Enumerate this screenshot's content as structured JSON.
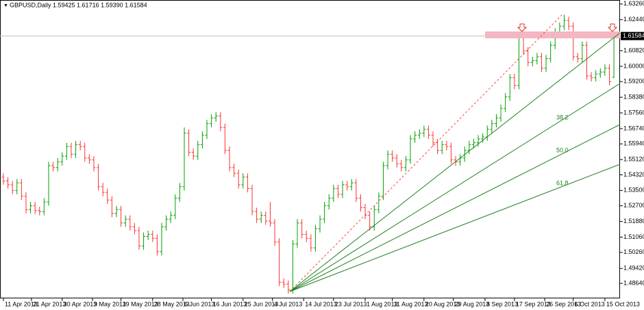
{
  "chart_data": {
    "type": "ohlc",
    "title": "GBPUSD,Daily  1.59425 1.61716 1.59390 1.61584",
    "up_color": "#00a000",
    "down_color": "#ff3030",
    "xlim": [
      -0.75,
      136.35
    ],
    "xticks": [
      {
        "value": 0,
        "label": "11 Apr 2013"
      },
      {
        "value": 6.2,
        "label": "21 Apr 2013"
      },
      {
        "value": 13,
        "label": "30 Apr 2013"
      },
      {
        "value": 19.7,
        "label": "9 May 2013"
      },
      {
        "value": 26,
        "label": "19 May 2013"
      },
      {
        "value": 33,
        "label": "28 May 2013"
      },
      {
        "value": 39.7,
        "label": "6 Jun 2013"
      },
      {
        "value": 46,
        "label": "16 Jun 2013"
      },
      {
        "value": 53,
        "label": "25 Jun 2013"
      },
      {
        "value": 59.5,
        "label": "4 Jul 2013"
      },
      {
        "value": 66.4,
        "label": "14 Jul 2013"
      },
      {
        "value": 73,
        "label": "23 Jul 2013"
      },
      {
        "value": 80,
        "label": "1 Aug 2013"
      },
      {
        "value": 86,
        "label": "11 Aug 2013"
      },
      {
        "value": 93,
        "label": "20 Aug 2013"
      },
      {
        "value": 99.5,
        "label": "29 Aug 2013"
      },
      {
        "value": 106.5,
        "label": "8 Sep 2013"
      },
      {
        "value": 113,
        "label": "17 Sep 2013"
      },
      {
        "value": 119.7,
        "label": "26 Sep 2013"
      },
      {
        "value": 126,
        "label": "6 Oct 2013"
      },
      {
        "value": 133,
        "label": "15 Oct 2013"
      }
    ],
    "ylim": [
      1.4789,
      1.6347
    ],
    "yticks": [
      {
        "value": 1.6326,
        "label": "1.63260"
      },
      {
        "value": 1.6244,
        "label": "1.62440"
      },
      {
        "value": 1.6082,
        "label": "1.60820"
      },
      {
        "value": 1.6,
        "label": "1.60000"
      },
      {
        "value": 1.592,
        "label": "1.59200"
      },
      {
        "value": 1.5838,
        "label": "1.58380"
      },
      {
        "value": 1.5756,
        "label": "1.57560"
      },
      {
        "value": 1.5674,
        "label": "1.56740"
      },
      {
        "value": 1.5594,
        "label": "1.55940"
      },
      {
        "value": 1.5512,
        "label": "1.55120"
      },
      {
        "value": 1.5432,
        "label": "1.54320"
      },
      {
        "value": 1.535,
        "label": "1.53500"
      },
      {
        "value": 1.527,
        "label": "1.52700"
      },
      {
        "value": 1.5188,
        "label": "1.51880"
      },
      {
        "value": 1.5106,
        "label": "1.51060"
      },
      {
        "value": 1.5026,
        "label": "1.50260"
      },
      {
        "value": 1.4942,
        "label": "1.49420"
      },
      {
        "value": 1.4864,
        "label": "1.48640"
      }
    ],
    "ohlc": {
      "open": [
        1.542,
        1.54,
        1.538,
        1.535,
        1.539,
        1.532,
        1.525,
        1.527,
        1.5245,
        1.524,
        1.529,
        1.548,
        1.547,
        1.55,
        1.553,
        1.558,
        1.554,
        1.559,
        1.558,
        1.552,
        1.551,
        1.547,
        1.537,
        1.534,
        1.53,
        1.523,
        1.525,
        1.518,
        1.52,
        1.516,
        1.514,
        1.506,
        1.511,
        1.512,
        1.51,
        1.503,
        1.516,
        1.52,
        1.522,
        1.531,
        1.537,
        1.565,
        1.555,
        1.553,
        1.559,
        1.564,
        1.57,
        1.573,
        1.574,
        1.568,
        1.556,
        1.547,
        1.544,
        1.538,
        1.542,
        1.536,
        1.524,
        1.52,
        1.522,
        1.519,
        1.518,
        1.508,
        1.487,
        1.486,
        1.483,
        1.507,
        1.518,
        1.512,
        1.51,
        1.505,
        1.515,
        1.52,
        1.527,
        1.531,
        1.536,
        1.533,
        1.538,
        1.537,
        1.539,
        1.531,
        1.526,
        1.522,
        1.516,
        1.525,
        1.532,
        1.548,
        1.554,
        1.552,
        1.549,
        1.547,
        1.551,
        1.562,
        1.564,
        1.565,
        1.567,
        1.564,
        1.56,
        1.556,
        1.559,
        1.558,
        1.551,
        1.55,
        1.552,
        1.556,
        1.559,
        1.56,
        1.562,
        1.563,
        1.567,
        1.57,
        1.573,
        1.578,
        1.584,
        1.594,
        1.59,
        1.615,
        1.608,
        1.602,
        1.603,
        1.605,
        1.599,
        1.604,
        1.611,
        1.618,
        1.621,
        1.624,
        1.621,
        1.605,
        1.604,
        1.611,
        1.595,
        1.594,
        1.596,
        1.597,
        1.599,
        1.59425
      ],
      "high": [
        1.544,
        1.542,
        1.54,
        1.541,
        1.541,
        1.534,
        1.529,
        1.529,
        1.5265,
        1.531,
        1.55,
        1.55,
        1.552,
        1.555,
        1.56,
        1.56,
        1.561,
        1.561,
        1.56,
        1.554,
        1.553,
        1.549,
        1.539,
        1.536,
        1.532,
        1.527,
        1.527,
        1.522,
        1.522,
        1.518,
        1.516,
        1.513,
        1.514,
        1.514,
        1.512,
        1.518,
        1.522,
        1.524,
        1.533,
        1.539,
        1.568,
        1.567,
        1.557,
        1.561,
        1.566,
        1.572,
        1.575,
        1.576,
        1.576,
        1.57,
        1.558,
        1.549,
        1.546,
        1.544,
        1.544,
        1.538,
        1.526,
        1.524,
        1.524,
        1.529,
        1.52,
        1.51,
        1.489,
        1.488,
        1.509,
        1.52,
        1.52,
        1.514,
        1.512,
        1.517,
        1.522,
        1.529,
        1.533,
        1.538,
        1.538,
        1.54,
        1.54,
        1.541,
        1.541,
        1.533,
        1.528,
        1.524,
        1.527,
        1.534,
        1.55,
        1.556,
        1.556,
        1.554,
        1.551,
        1.553,
        1.564,
        1.566,
        1.567,
        1.569,
        1.569,
        1.566,
        1.562,
        1.561,
        1.561,
        1.56,
        1.553,
        1.554,
        1.558,
        1.561,
        1.562,
        1.564,
        1.565,
        1.569,
        1.572,
        1.575,
        1.58,
        1.586,
        1.596,
        1.596,
        1.617,
        1.617,
        1.61,
        1.605,
        1.607,
        1.607,
        1.606,
        1.613,
        1.62,
        1.623,
        1.627,
        1.626,
        1.623,
        1.607,
        1.613,
        1.613,
        1.597,
        1.598,
        1.599,
        1.601,
        1.601,
        1.61716
      ],
      "low": [
        1.538,
        1.536,
        1.533,
        1.533,
        1.53,
        1.523,
        1.523,
        1.5225,
        1.522,
        1.522,
        1.527,
        1.545,
        1.545,
        1.548,
        1.551,
        1.552,
        1.552,
        1.556,
        1.55,
        1.549,
        1.545,
        1.535,
        1.532,
        1.528,
        1.521,
        1.521,
        1.516,
        1.516,
        1.514,
        1.512,
        1.504,
        1.504,
        1.509,
        1.508,
        1.501,
        1.501,
        1.514,
        1.518,
        1.52,
        1.529,
        1.535,
        1.553,
        1.551,
        1.551,
        1.557,
        1.562,
        1.568,
        1.571,
        1.566,
        1.554,
        1.545,
        1.542,
        1.536,
        1.536,
        1.534,
        1.522,
        1.518,
        1.518,
        1.517,
        1.516,
        1.506,
        1.485,
        1.484,
        1.481,
        1.481,
        1.505,
        1.51,
        1.508,
        1.503,
        1.503,
        1.513,
        1.518,
        1.525,
        1.529,
        1.531,
        1.531,
        1.535,
        1.535,
        1.529,
        1.524,
        1.52,
        1.514,
        1.514,
        1.523,
        1.53,
        1.546,
        1.55,
        1.547,
        1.545,
        1.545,
        1.549,
        1.56,
        1.562,
        1.563,
        1.562,
        1.558,
        1.554,
        1.554,
        1.556,
        1.549,
        1.548,
        1.548,
        1.55,
        1.554,
        1.557,
        1.558,
        1.56,
        1.561,
        1.565,
        1.568,
        1.571,
        1.576,
        1.582,
        1.588,
        1.588,
        1.606,
        1.6,
        1.6,
        1.601,
        1.597,
        1.597,
        1.602,
        1.609,
        1.616,
        1.619,
        1.619,
        1.603,
        1.602,
        1.602,
        1.593,
        1.592,
        1.592,
        1.594,
        1.595,
        1.59,
        1.5939
      ],
      "close": [
        1.54,
        1.538,
        1.535,
        1.539,
        1.532,
        1.525,
        1.527,
        1.5245,
        1.524,
        1.529,
        1.548,
        1.547,
        1.55,
        1.553,
        1.558,
        1.554,
        1.559,
        1.558,
        1.552,
        1.551,
        1.547,
        1.537,
        1.534,
        1.53,
        1.523,
        1.525,
        1.518,
        1.52,
        1.516,
        1.514,
        1.506,
        1.511,
        1.512,
        1.51,
        1.503,
        1.516,
        1.52,
        1.522,
        1.531,
        1.537,
        1.565,
        1.555,
        1.553,
        1.559,
        1.564,
        1.57,
        1.573,
        1.574,
        1.568,
        1.556,
        1.547,
        1.544,
        1.538,
        1.542,
        1.536,
        1.524,
        1.52,
        1.522,
        1.519,
        1.518,
        1.508,
        1.487,
        1.486,
        1.483,
        1.507,
        1.518,
        1.512,
        1.51,
        1.505,
        1.515,
        1.52,
        1.527,
        1.531,
        1.536,
        1.533,
        1.538,
        1.537,
        1.539,
        1.531,
        1.526,
        1.522,
        1.516,
        1.525,
        1.532,
        1.548,
        1.554,
        1.552,
        1.549,
        1.547,
        1.551,
        1.562,
        1.564,
        1.565,
        1.567,
        1.564,
        1.56,
        1.556,
        1.559,
        1.558,
        1.551,
        1.55,
        1.552,
        1.556,
        1.559,
        1.56,
        1.562,
        1.563,
        1.567,
        1.57,
        1.573,
        1.578,
        1.584,
        1.594,
        1.59,
        1.615,
        1.608,
        1.602,
        1.603,
        1.605,
        1.599,
        1.604,
        1.611,
        1.618,
        1.621,
        1.624,
        1.621,
        1.605,
        1.604,
        1.611,
        1.595,
        1.594,
        1.596,
        1.597,
        1.599,
        1.592,
        1.61584
      ]
    },
    "fan_labels": [
      "38.2",
      "50.0",
      "61.8"
    ]
  }
}
